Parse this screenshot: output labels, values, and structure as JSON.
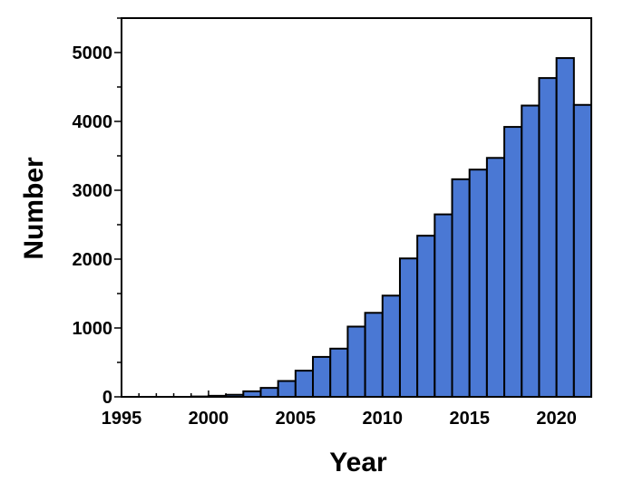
{
  "chart_data": {
    "type": "bar",
    "xlabel": "Year",
    "ylabel": "Number",
    "title": "",
    "xlim": [
      1995,
      2022
    ],
    "ylim": [
      0,
      5500
    ],
    "x_ticks": [
      1995,
      2000,
      2005,
      2010,
      2015,
      2020
    ],
    "y_ticks": [
      0,
      1000,
      2000,
      3000,
      4000,
      5000
    ],
    "bar_color": "#4a78d4",
    "edge_color": "#000000",
    "grid": false,
    "legend": "none",
    "categories": [
      1995,
      1996,
      1997,
      1998,
      1999,
      2000,
      2001,
      2002,
      2003,
      2004,
      2005,
      2006,
      2007,
      2008,
      2009,
      2010,
      2011,
      2012,
      2013,
      2014,
      2015,
      2016,
      2017,
      2018,
      2019,
      2020,
      2021
    ],
    "values": [
      0,
      0,
      0,
      0,
      5,
      15,
      30,
      80,
      130,
      230,
      380,
      580,
      700,
      1020,
      1220,
      1470,
      2010,
      2340,
      2650,
      3160,
      3300,
      3470,
      3920,
      4230,
      4630,
      4920,
      4240
    ]
  }
}
